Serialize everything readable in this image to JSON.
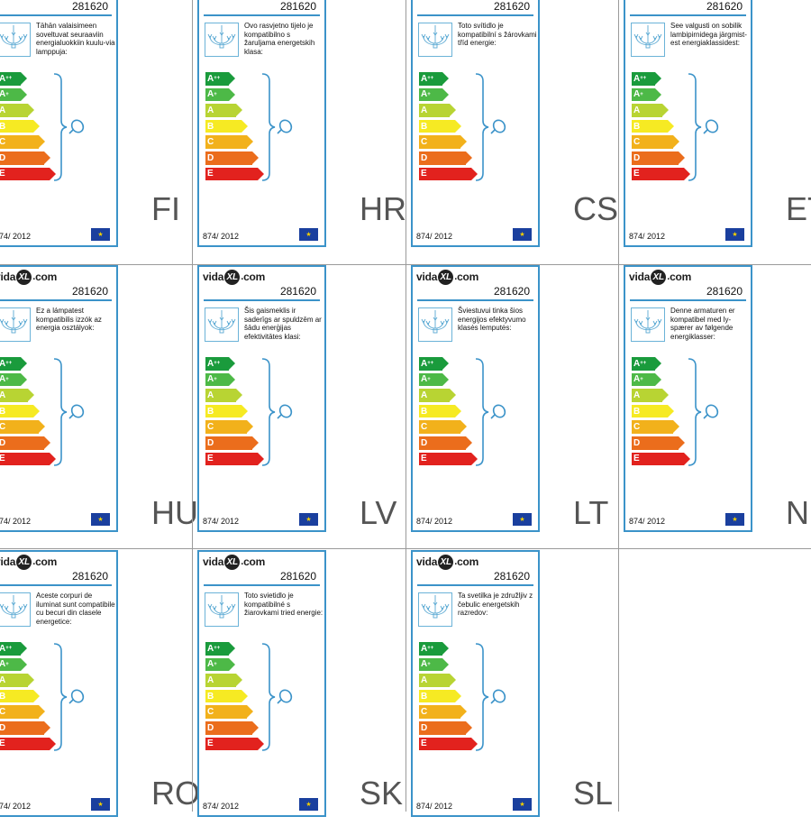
{
  "product_code": "281620",
  "brand": {
    "left": "vida",
    "mark": "XL",
    "dot": ".",
    "right": "com"
  },
  "regulation": "874/ 2012",
  "eu_flag": "eu-flag-icon",
  "classes": [
    {
      "letter": "A",
      "sup": "++",
      "color": "#1a9b3c"
    },
    {
      "letter": "A",
      "sup": "+",
      "color": "#4db947"
    },
    {
      "letter": "A",
      "sup": "",
      "color": "#b8d433"
    },
    {
      "letter": "B",
      "sup": "",
      "color": "#f6ea23"
    },
    {
      "letter": "C",
      "sup": "",
      "color": "#f2b11b"
    },
    {
      "letter": "D",
      "sup": "",
      "color": "#eb6d1c"
    },
    {
      "letter": "E",
      "sup": "",
      "color": "#e2221e"
    }
  ],
  "labels": [
    {
      "lang": "FI",
      "text": "Tähän valaisimeen soveltuvat seuraaviin energialuokkiin kuulu-via lamppuja:"
    },
    {
      "lang": "HR",
      "text": "Ovo rasvjetno tijelo je kompatibilno s žaruljama energetskih klasa:"
    },
    {
      "lang": "CS",
      "text": "Toto svítidlo je kompatibilní s žárovkami tříd energie:"
    },
    {
      "lang": "ET",
      "text": "See valgusti on sobilik lambipirnidega järgmist-est energiaklassidest:"
    },
    {
      "lang": "HU",
      "text": "Ez a lámpatest kompatibilis izzók az energia osztályok:"
    },
    {
      "lang": "LV",
      "text": "Šis gaismeklis ir saderīgs ar spuldzēm ar šādu enerģijas efektivitātes klasi:"
    },
    {
      "lang": "LT",
      "text": "Šviestuvui tinka šios energijos efektyvumo klasės lemputės:"
    },
    {
      "lang": "NE",
      "text": "Denne armaturen er kompatibel med ly-spærer av følgende energiklasser:"
    },
    {
      "lang": "RO",
      "text": "Aceste corpuri de iluminat sunt compatibile cu becuri din clasele energetice:"
    },
    {
      "lang": "SK",
      "text": "Toto svietidlo je kompatibilné s žiarovkami tried energie:"
    },
    {
      "lang": "SL",
      "text": "Ta svetilka je združljiv z čebulic energetskih razredov:"
    }
  ]
}
